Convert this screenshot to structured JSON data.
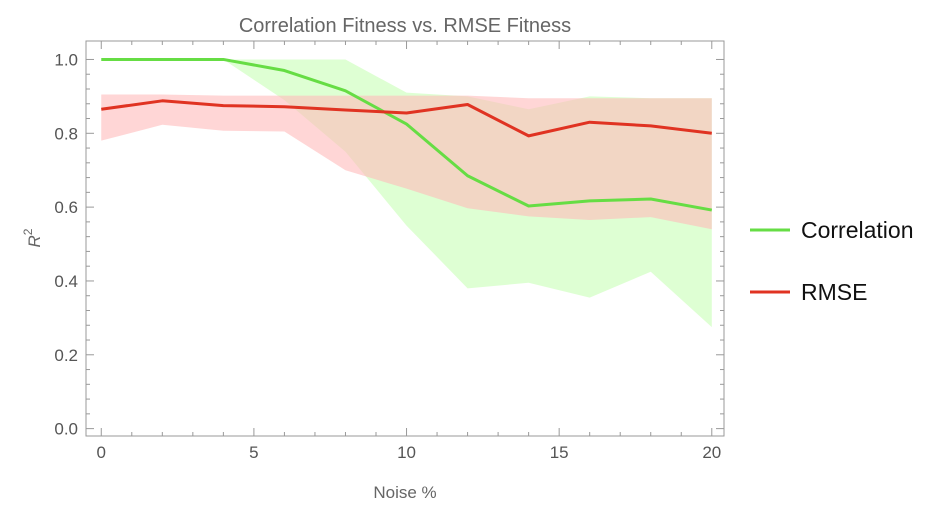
{
  "chart_data": {
    "type": "line",
    "title": "Correlation Fitness vs. RMSE Fitness",
    "xlabel": "Noise %",
    "ylabel": "R",
    "ylabel_superscript": "2",
    "xlim": [
      -0.5,
      20.4
    ],
    "ylim": [
      -0.02,
      1.05
    ],
    "x_ticks": [
      0,
      5,
      10,
      15,
      20
    ],
    "x_tick_labels": [
      "0",
      "5",
      "10",
      "15",
      "20"
    ],
    "y_ticks": [
      0.0,
      0.2,
      0.4,
      0.6,
      0.8,
      1.0
    ],
    "y_tick_labels": [
      "0.0",
      "0.2",
      "0.4",
      "0.6",
      "0.8",
      "1.0"
    ],
    "x": [
      0,
      2,
      4,
      6,
      8,
      10,
      12,
      14,
      16,
      18,
      20
    ],
    "series": [
      {
        "name": "Correlation",
        "color": "#66dd44",
        "band_color": "#ccffbb",
        "values": [
          1.0,
          1.0,
          1.0,
          0.97,
          0.915,
          0.825,
          0.685,
          0.603,
          0.617,
          0.622,
          0.592
        ],
        "upper": [
          1.0,
          1.0,
          1.0,
          1.0,
          1.0,
          0.91,
          0.9,
          0.865,
          0.9,
          0.895,
          0.895
        ],
        "lower": [
          1.0,
          1.0,
          1.0,
          0.89,
          0.75,
          0.55,
          0.38,
          0.395,
          0.355,
          0.425,
          0.275
        ]
      },
      {
        "name": "RMSE",
        "color": "#e03322",
        "band_color": "#ffbbbb",
        "values": [
          0.865,
          0.888,
          0.875,
          0.872,
          0.863,
          0.855,
          0.878,
          0.793,
          0.83,
          0.82,
          0.8
        ],
        "upper": [
          0.905,
          0.905,
          0.902,
          0.902,
          0.902,
          0.902,
          0.902,
          0.895,
          0.895,
          0.895,
          0.895
        ],
        "lower": [
          0.78,
          0.823,
          0.807,
          0.805,
          0.7,
          0.65,
          0.597,
          0.575,
          0.565,
          0.573,
          0.54
        ]
      }
    ],
    "legend_position": "right"
  }
}
